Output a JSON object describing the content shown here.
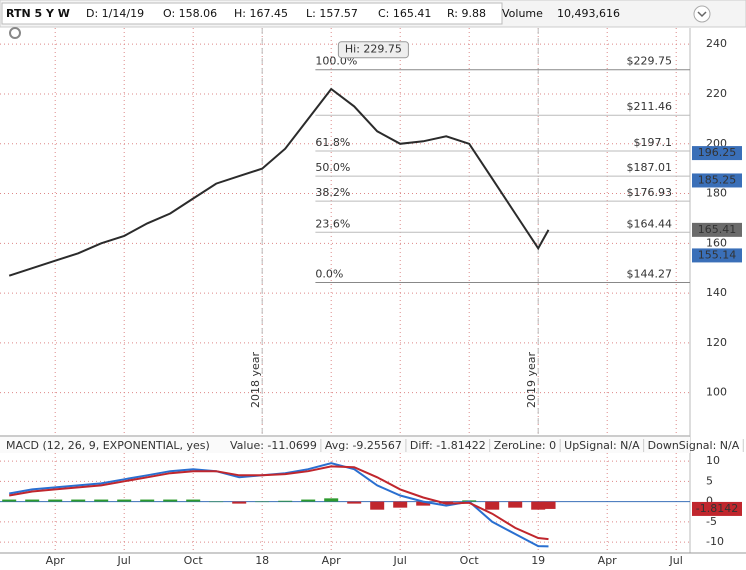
{
  "header": {
    "symbol": "RTN 5 Y W",
    "date": "D: 1/14/19",
    "open": "O: 158.06",
    "high": "H: 167.45",
    "low": "L: 157.57",
    "close": "C: 165.41",
    "range": "R: 9.88",
    "volume_label": "Volume",
    "volume": "10,493,616"
  },
  "chart_data": [
    {
      "type": "line",
      "annotation": "Hi: 229.75",
      "hi_value": 229.75,
      "hi_x": 15.4,
      "year_labels": [
        {
          "text": "2018 year",
          "x": 12
        },
        {
          "text": "2019 year",
          "x": 24
        }
      ],
      "x": [
        1,
        2,
        3,
        4,
        5,
        6,
        7,
        8,
        9,
        10,
        11,
        12,
        13,
        14,
        15,
        16,
        17,
        18,
        19,
        20,
        21,
        22,
        23,
        24,
        24.45
      ],
      "series": [
        {
          "color": "#2b2b2b",
          "values": [
            147,
            150,
            153,
            156,
            160,
            163,
            168,
            172,
            178,
            184,
            187,
            190,
            198,
            210,
            222,
            215,
            205,
            200,
            201,
            203,
            200,
            186,
            172,
            158,
            165.41
          ]
        }
      ],
      "xlim": [
        0.6,
        30.6
      ],
      "ylim": [
        83,
        246.5
      ],
      "yticks": [
        100,
        120,
        140,
        160,
        180,
        200,
        220,
        240
      ],
      "grid": true,
      "levels": [
        {
          "value": 229.75,
          "label": "$229.75",
          "pct": "100.0%"
        },
        {
          "value": 211.46,
          "label": "$211.46"
        },
        {
          "value": 197.1,
          "label": "$197.1",
          "pct": "61.8%"
        },
        {
          "value": 187.01,
          "label": "$187.01",
          "pct": "50.0%"
        },
        {
          "value": 176.93,
          "label": "$176.93",
          "pct": "38.2%"
        },
        {
          "value": 164.44,
          "label": "$164.44",
          "pct": "23.6%"
        },
        {
          "value": 144.27,
          "label": "$144.27",
          "pct": "0.0%"
        }
      ],
      "price_tags": [
        {
          "value": 196.25,
          "color": "#3a6fb8"
        },
        {
          "value": 185.25,
          "color": "#3a6fb8"
        },
        {
          "value": 165.41,
          "color": "#6b6b6b"
        },
        {
          "value": 155.14,
          "color": "#3a6fb8"
        }
      ]
    },
    {
      "type": "macd",
      "title": "MACD (12, 26, 9, EXPONENTIAL, yes)",
      "stats": [
        {
          "text": "Value: -11.0699",
          "color": "#1f5fbf"
        },
        {
          "text": "Avg: -9.25567",
          "color": "#c0262d"
        },
        {
          "text": "Diff: -1.81422",
          "color": "#222222"
        },
        {
          "text": "ZeroLine: 0",
          "color": "#222222"
        },
        {
          "text": "UpSignal: N/A",
          "color": "#2e9a2e"
        },
        {
          "text": "DownSignal: N/A",
          "color": "#c0262d"
        }
      ],
      "x": [
        1,
        2,
        3,
        4,
        5,
        6,
        7,
        8,
        9,
        10,
        11,
        12,
        13,
        14,
        15,
        16,
        17,
        18,
        19,
        20,
        21,
        22,
        23,
        24,
        24.45
      ],
      "series": [
        {
          "color": "#2a6fd0",
          "values": [
            2,
            3,
            3.5,
            4,
            4.5,
            5.5,
            6.5,
            7.5,
            8,
            7.5,
            6,
            6.5,
            7,
            8,
            9.5,
            8,
            4,
            1.5,
            0,
            -1,
            0,
            -5,
            -8,
            -11,
            -11.0699
          ]
        },
        {
          "color": "#c0262d",
          "values": [
            1.5,
            2.5,
            3,
            3.5,
            4,
            5,
            6,
            7,
            7.5,
            7.5,
            6.5,
            6.5,
            6.8,
            7.5,
            8.7,
            8.5,
            6,
            3,
            1,
            -0.5,
            -0.3,
            -3,
            -6.5,
            -9,
            -9.25567
          ]
        }
      ],
      "diff": [
        0.5,
        0.5,
        0.5,
        0.5,
        0.5,
        0.5,
        0.5,
        0.5,
        0.5,
        0,
        -0.5,
        0,
        0.2,
        0.5,
        0.8,
        -0.5,
        -2,
        -1.5,
        -1,
        -0.5,
        0.3,
        -2,
        -1.5,
        -2,
        -1.81422
      ],
      "diff_tag": {
        "value": -1.8142,
        "color": "#c0262d"
      },
      "xlim": [
        0.6,
        30.6
      ],
      "ylim": [
        -12.7,
        12
      ],
      "yticks": [
        10,
        5,
        0,
        -5,
        -10
      ],
      "xticks": [
        {
          "value": 3,
          "label": "Apr"
        },
        {
          "value": 6,
          "label": "Jul"
        },
        {
          "value": 9,
          "label": "Oct"
        },
        {
          "value": 12,
          "label": "18"
        },
        {
          "value": 15,
          "label": "Apr"
        },
        {
          "value": 18,
          "label": "Jul"
        },
        {
          "value": 21,
          "label": "Oct"
        },
        {
          "value": 24,
          "label": "19"
        },
        {
          "value": 27,
          "label": "Apr"
        },
        {
          "value": 30,
          "label": "Jul"
        }
      ]
    }
  ]
}
